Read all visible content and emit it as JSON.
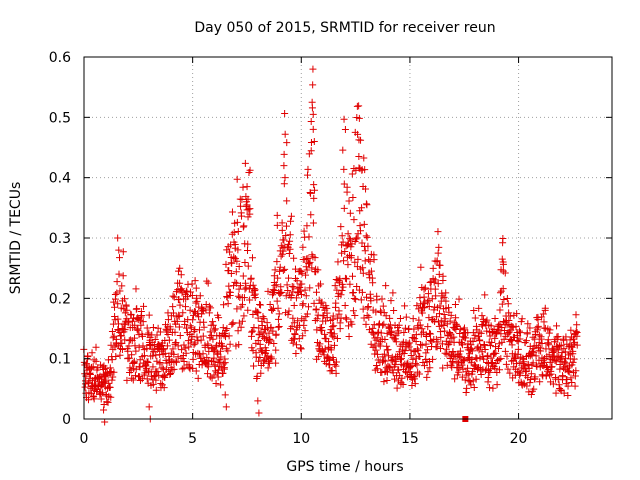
{
  "chart_data": {
    "type": "scatter",
    "title": "Day 050 of 2015, SRMTID for receiver reun",
    "xlabel": "GPS time / hours",
    "ylabel": "SRMTID / TECUs",
    "xlim": [
      0,
      24.3
    ],
    "ylim": [
      0,
      0.6
    ],
    "xticks": [
      0,
      5,
      10,
      15,
      20
    ],
    "yticks": [
      0,
      0.1,
      0.2,
      0.3,
      0.4,
      0.5,
      0.6
    ],
    "xtick_labels": [
      "0",
      "5",
      "10",
      "15",
      "20"
    ],
    "ytick_labels": [
      "0",
      "0.1",
      "0.2",
      "0.3",
      "0.4",
      "0.5",
      "0.6"
    ],
    "grid": true,
    "marker": "plus",
    "series_color": "#e00000",
    "trend": [
      [
        0.0,
        0.07
      ],
      [
        0.5,
        0.07
      ],
      [
        1.0,
        0.05
      ],
      [
        1.3,
        0.09
      ],
      [
        1.6,
        0.2
      ],
      [
        1.8,
        0.17
      ],
      [
        2.0,
        0.12
      ],
      [
        2.5,
        0.12
      ],
      [
        3.0,
        0.1
      ],
      [
        3.5,
        0.09
      ],
      [
        4.0,
        0.12
      ],
      [
        4.4,
        0.2
      ],
      [
        4.6,
        0.15
      ],
      [
        5.0,
        0.15
      ],
      [
        5.5,
        0.14
      ],
      [
        6.0,
        0.12
      ],
      [
        6.3,
        0.08
      ],
      [
        6.6,
        0.2
      ],
      [
        7.0,
        0.22
      ],
      [
        7.4,
        0.3
      ],
      [
        7.6,
        0.27
      ],
      [
        7.8,
        0.15
      ],
      [
        8.2,
        0.12
      ],
      [
        8.6,
        0.16
      ],
      [
        9.0,
        0.2
      ],
      [
        9.3,
        0.35
      ],
      [
        9.6,
        0.2
      ],
      [
        10.0,
        0.17
      ],
      [
        10.3,
        0.3
      ],
      [
        10.55,
        0.42
      ],
      [
        10.7,
        0.17
      ],
      [
        11.0,
        0.14
      ],
      [
        11.5,
        0.12
      ],
      [
        12.0,
        0.3
      ],
      [
        12.3,
        0.22
      ],
      [
        12.6,
        0.4
      ],
      [
        12.9,
        0.3
      ],
      [
        13.2,
        0.2
      ],
      [
        13.5,
        0.13
      ],
      [
        14.0,
        0.13
      ],
      [
        14.5,
        0.11
      ],
      [
        15.0,
        0.1
      ],
      [
        15.5,
        0.14
      ],
      [
        16.0,
        0.15
      ],
      [
        16.3,
        0.22
      ],
      [
        16.6,
        0.14
      ],
      [
        17.0,
        0.13
      ],
      [
        17.5,
        0.1
      ],
      [
        18.0,
        0.11
      ],
      [
        18.5,
        0.12
      ],
      [
        19.0,
        0.1
      ],
      [
        19.3,
        0.22
      ],
      [
        19.6,
        0.12
      ],
      [
        20.0,
        0.1
      ],
      [
        20.5,
        0.09
      ],
      [
        21.0,
        0.12
      ],
      [
        21.5,
        0.09
      ],
      [
        22.0,
        0.09
      ],
      [
        22.6,
        0.1
      ],
      [
        22.7,
        0.1
      ]
    ],
    "peaks": [
      [
        1.55,
        0.3
      ],
      [
        4.35,
        0.245
      ],
      [
        7.5,
        0.355
      ],
      [
        9.2,
        0.42
      ],
      [
        10.5,
        0.525
      ],
      [
        10.55,
        0.48
      ],
      [
        12.65,
        0.435
      ],
      [
        16.3,
        0.275
      ],
      [
        19.25,
        0.265
      ],
      [
        17.55,
        0.0
      ],
      [
        0.9,
        0.015
      ],
      [
        3.0,
        0.02
      ],
      [
        6.5,
        0.04
      ],
      [
        8.0,
        0.03
      ]
    ]
  }
}
